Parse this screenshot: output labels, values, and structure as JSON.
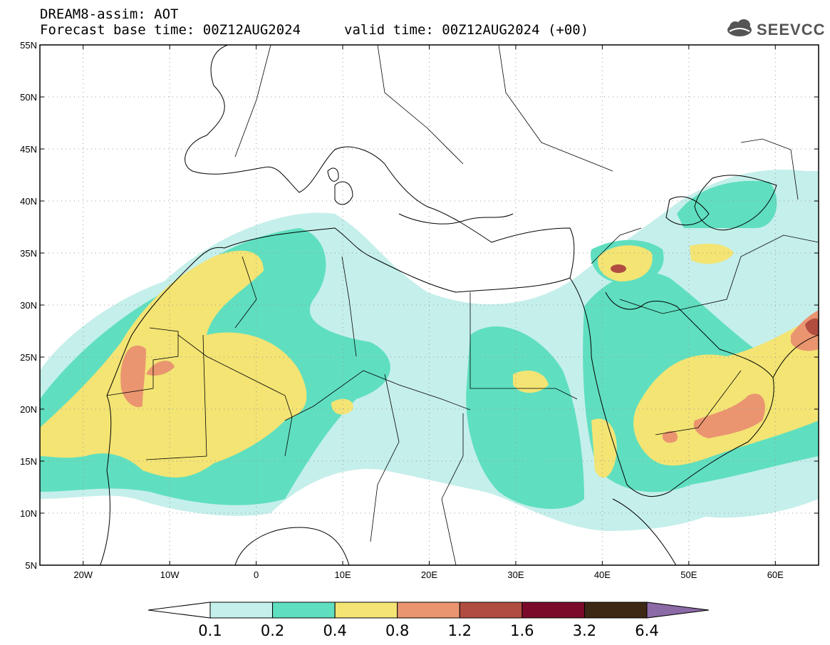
{
  "header": {
    "title": "DREAM8-assim: AOT",
    "forecast_base": "Forecast base time: 00Z12AUG2024",
    "valid_time": "valid time: 00Z12AUG2024 (+00)"
  },
  "logo": {
    "text": "SEEVCCC",
    "icon": "cloud-icon"
  },
  "map": {
    "projection": "lat-lon",
    "lon_range": [
      -25,
      65
    ],
    "lat_range": [
      5,
      55
    ],
    "lat_ticks": [
      "55N",
      "50N",
      "45N",
      "40N",
      "35N",
      "30N",
      "25N",
      "20N",
      "15N",
      "10N",
      "5N"
    ],
    "lon_ticks": [
      "20W",
      "10W",
      "0",
      "10E",
      "20E",
      "30E",
      "40E",
      "50E",
      "60E"
    ],
    "gridlines": "dotted"
  },
  "colorbar": {
    "thresholds": [
      "0.1",
      "0.2",
      "0.4",
      "0.8",
      "1.2",
      "1.6",
      "3.2",
      "6.4"
    ],
    "colors": [
      "#c5efea",
      "#5fdfbf",
      "#f3e474",
      "#ea9570",
      "#b04d40",
      "#7b0a2a",
      "#3c2814",
      "#8b6aa6"
    ],
    "under_color": "#ffffff"
  }
}
